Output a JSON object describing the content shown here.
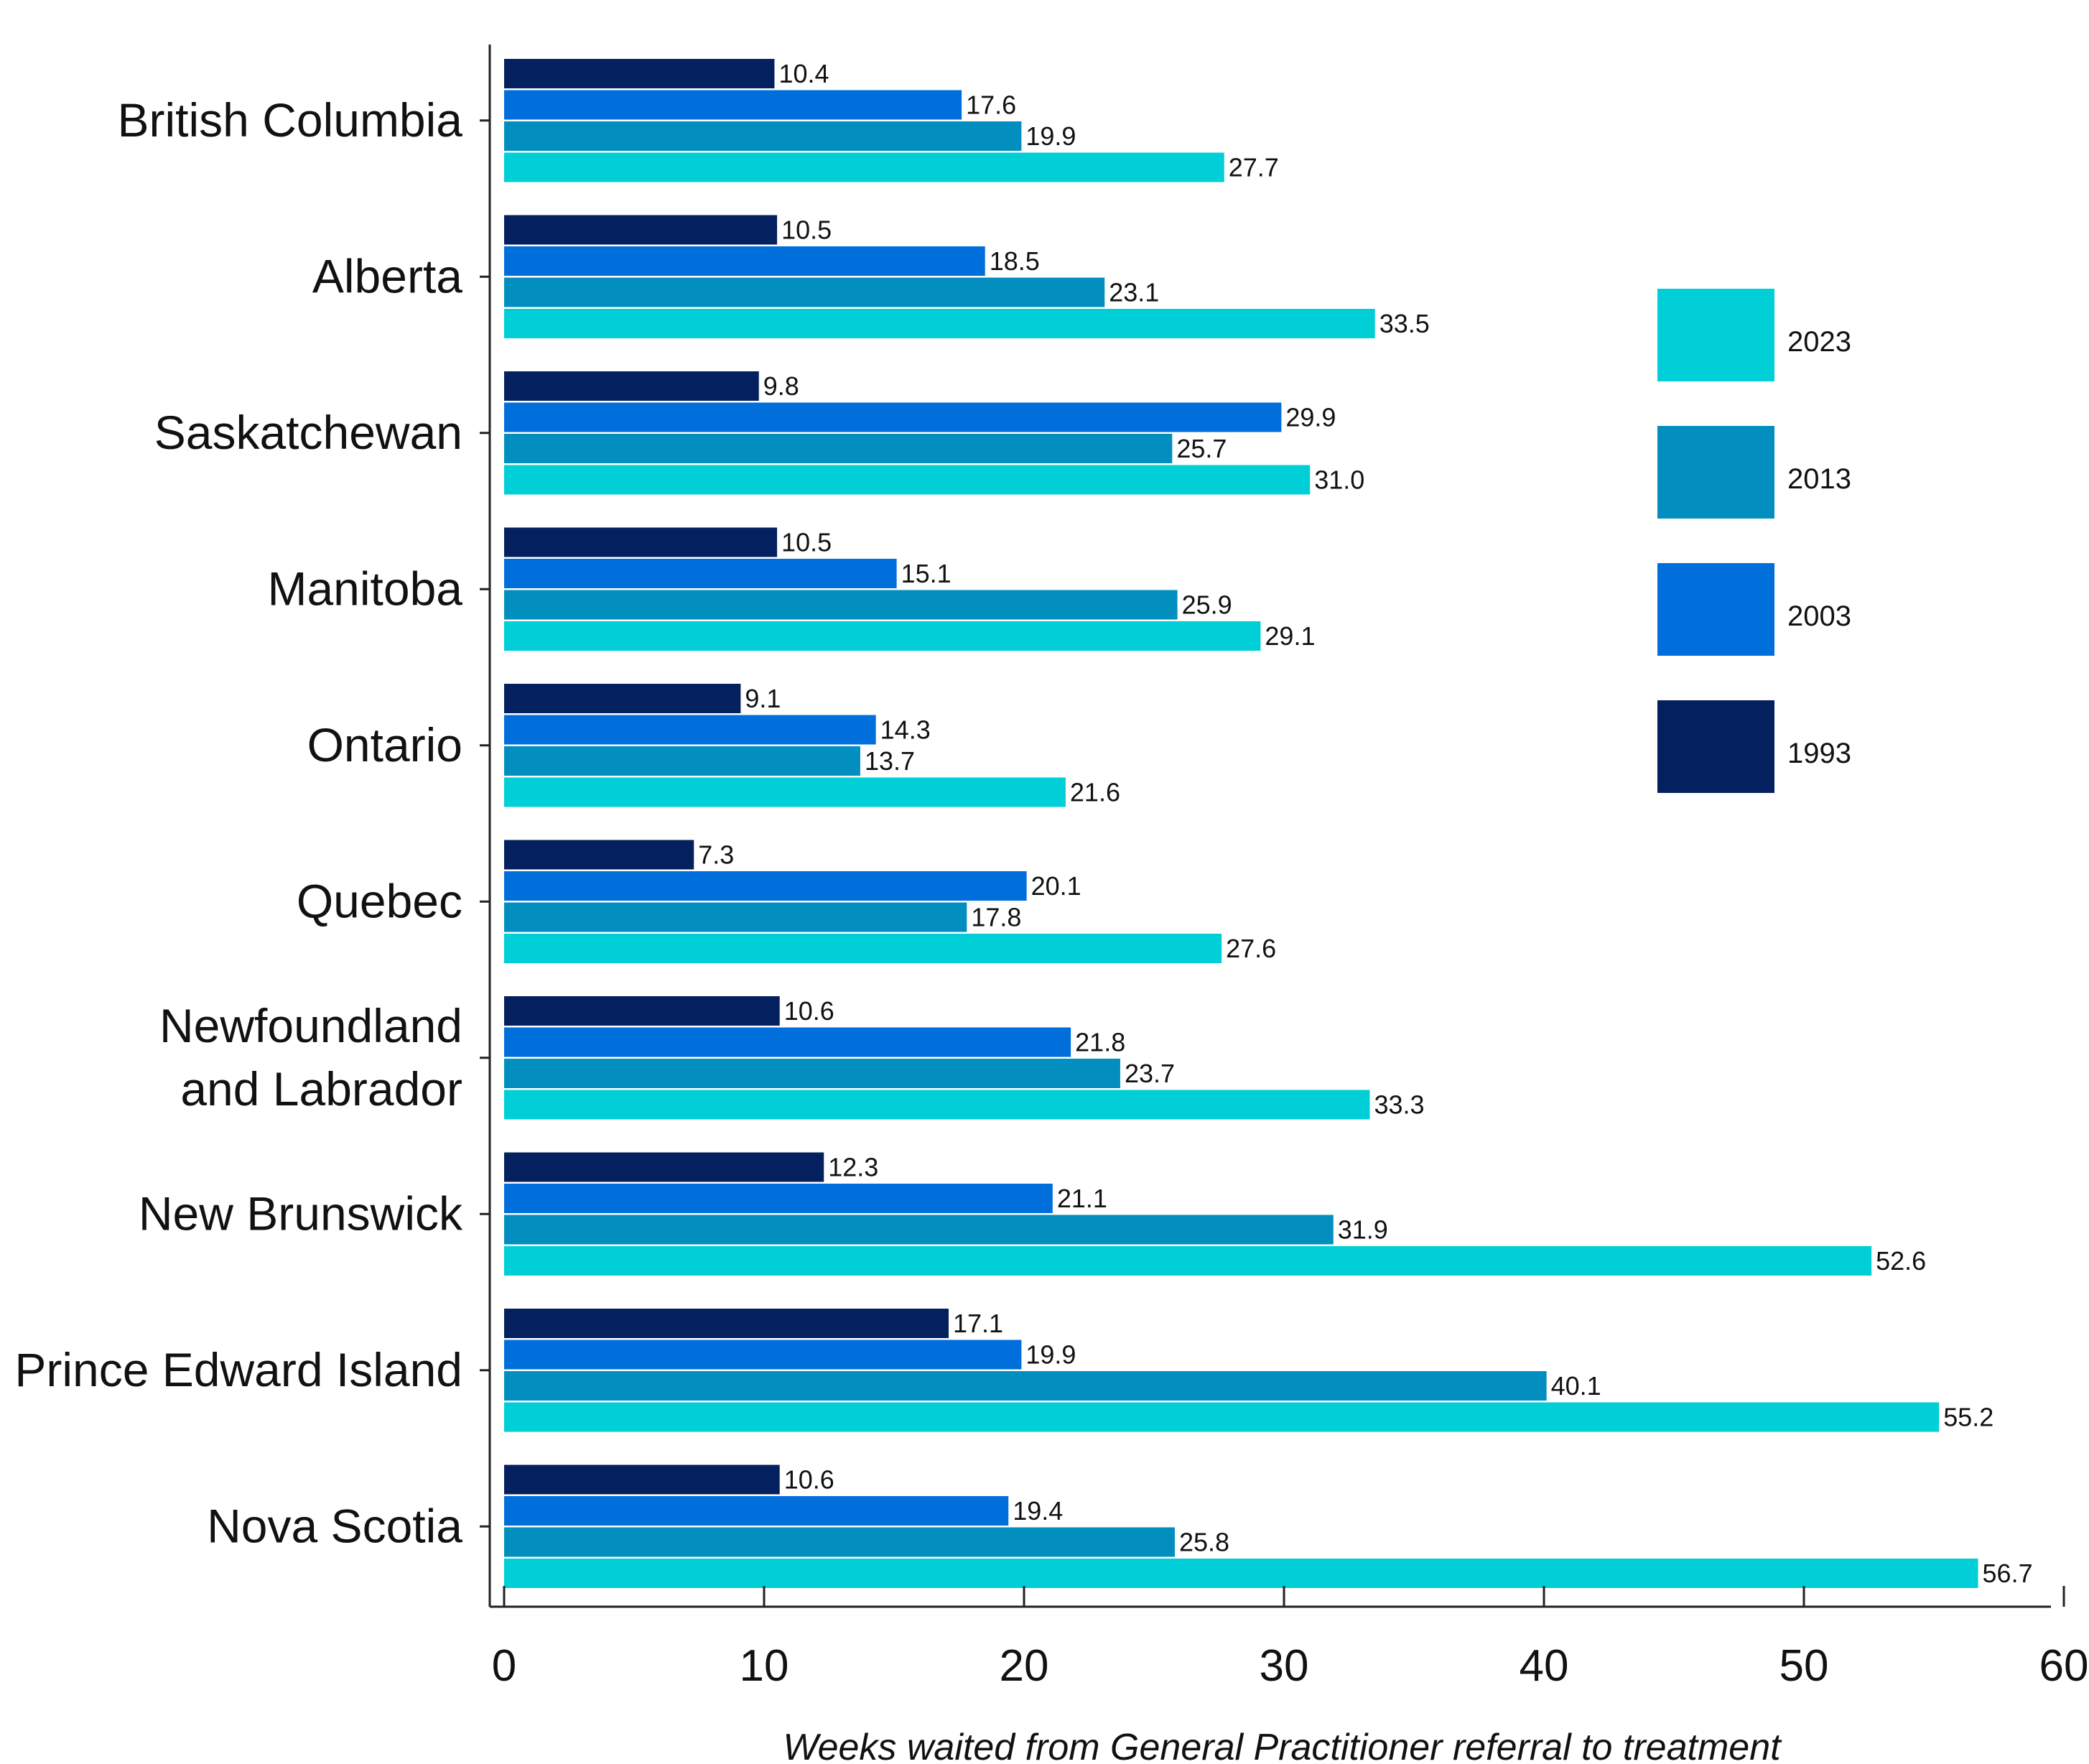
{
  "chart_data": {
    "type": "bar",
    "orientation": "horizontal",
    "title": "",
    "xlabel": "Weeks waited from General Practitioner referral to treatment",
    "ylabel": "",
    "xlim": [
      0,
      60
    ],
    "xticks": [
      0,
      10,
      20,
      30,
      40,
      50,
      60
    ],
    "grid": false,
    "legend_position": "right",
    "categories": [
      [
        "British Columbia"
      ],
      [
        "Alberta"
      ],
      [
        "Saskatchewan"
      ],
      [
        "Manitoba"
      ],
      [
        "Ontario"
      ],
      [
        "Quebec"
      ],
      [
        "Newfoundland",
        "and Labrador"
      ],
      [
        "New Brunswick"
      ],
      [
        "Prince Edward Island"
      ],
      [
        "Nova Scotia"
      ]
    ],
    "series": [
      {
        "name": "1993",
        "color": "#04205e",
        "values": [
          10.4,
          10.5,
          9.8,
          10.5,
          9.1,
          7.3,
          10.6,
          12.3,
          17.1,
          10.6
        ]
      },
      {
        "name": "2003",
        "color": "#006fdc",
        "values": [
          17.6,
          18.5,
          29.9,
          15.1,
          14.3,
          20.1,
          21.8,
          21.1,
          19.9,
          19.4
        ]
      },
      {
        "name": "2013",
        "color": "#028ebf",
        "values": [
          19.9,
          23.1,
          25.7,
          25.9,
          13.7,
          17.8,
          23.7,
          31.9,
          40.1,
          25.8
        ]
      },
      {
        "name": "2023",
        "color": "#00cfd8",
        "values": [
          27.7,
          33.5,
          31.0,
          29.1,
          21.6,
          27.6,
          33.3,
          52.6,
          55.2,
          56.7
        ]
      }
    ],
    "value_labels": [
      [
        "10.4",
        "10.5",
        "9.8",
        "10.5",
        "9.1",
        "7.3",
        "10.6",
        "12.3",
        "17.1",
        "10.6"
      ],
      [
        "17.6",
        "18.5",
        "29.9",
        "15.1",
        "14.3",
        "20.1",
        "21.8",
        "21.1",
        "19.9",
        "19.4"
      ],
      [
        "19.9",
        "23.1",
        "25.7",
        "25.9",
        "13.7",
        "17.8",
        "23.7",
        "31.9",
        "40.1",
        "25.8"
      ],
      [
        "27.7",
        "33.5",
        "31.0",
        "29.1",
        "21.6",
        "27.6",
        "33.3",
        "52.6",
        "55.2",
        "56.7"
      ]
    ],
    "legend_order": [
      "2023",
      "2013",
      "2003",
      "1993"
    ]
  }
}
